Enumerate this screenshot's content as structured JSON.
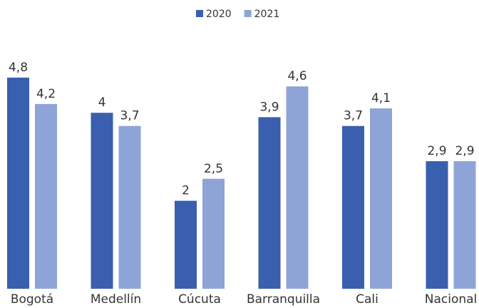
{
  "chart_data": {
    "type": "bar",
    "categories": [
      "Bogotá",
      "Medellín",
      "Cúcuta",
      "Barranquilla",
      "Cali",
      "Nacional"
    ],
    "series": [
      {
        "name": "2020",
        "color": "#3a5fae",
        "values": [
          4.8,
          4,
          2,
          3.9,
          3.7,
          2.9
        ],
        "value_labels": [
          "4,8",
          "4",
          "2",
          "3,9",
          "3,7",
          "2,9"
        ]
      },
      {
        "name": "2021",
        "color": "#8fa4d6",
        "values": [
          4.2,
          3.7,
          2.5,
          4.6,
          4.1,
          2.9
        ],
        "value_labels": [
          "4,2",
          "3,7",
          "2,5",
          "4,6",
          "4,1",
          "2,9"
        ]
      }
    ],
    "legend": "top"
  }
}
